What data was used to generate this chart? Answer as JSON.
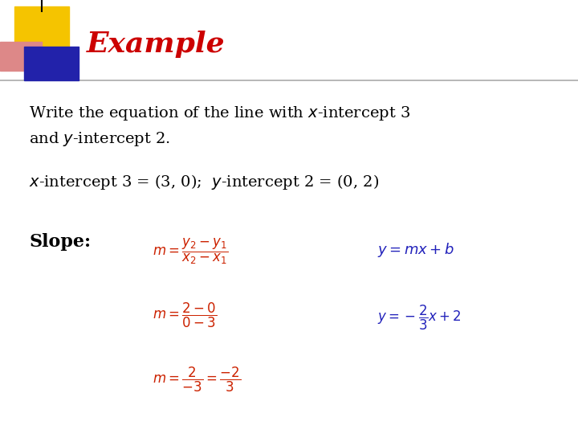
{
  "title": "Example",
  "title_color": "#cc0000",
  "bg_color": "#ffffff",
  "body_text_color": "#000000",
  "formula_color_red": "#cc2200",
  "formula_color_blue": "#2222bb",
  "square_yellow": "#f5c400",
  "square_pink": "#dd8888",
  "square_blue": "#2222aa",
  "figw": 7.2,
  "figh": 5.4,
  "dpi": 100
}
